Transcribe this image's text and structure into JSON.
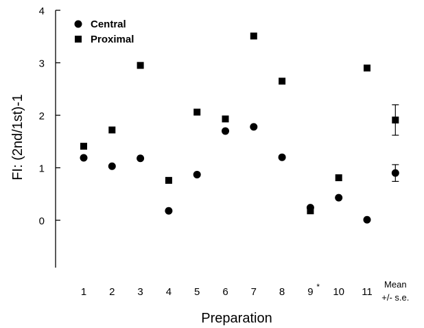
{
  "chart_data": {
    "type": "scatter",
    "xlabel": "Preparation",
    "ylabel": "FI:  (2nd/1st)-1",
    "ylim": [
      -0.9,
      4
    ],
    "yticks": [
      0,
      1,
      2,
      3,
      4
    ],
    "grid": false,
    "legend_position": "top-left",
    "categories": [
      {
        "label": "1",
        "suffix": ""
      },
      {
        "label": "2",
        "suffix": ""
      },
      {
        "label": "3",
        "suffix": ""
      },
      {
        "label": "4",
        "suffix": ""
      },
      {
        "label": "5",
        "suffix": ""
      },
      {
        "label": "6",
        "suffix": ""
      },
      {
        "label": "7",
        "suffix": ""
      },
      {
        "label": "8",
        "suffix": ""
      },
      {
        "label": "9",
        "suffix": "*"
      },
      {
        "label": "10",
        "suffix": ""
      },
      {
        "label": "11",
        "suffix": ""
      },
      {
        "label": "Mean",
        "label2": "+/- s.e.",
        "suffix": ""
      }
    ],
    "series": [
      {
        "name": "Central",
        "marker": "circle",
        "color": "#000000",
        "values": [
          1.19,
          1.03,
          1.18,
          0.18,
          0.87,
          1.7,
          1.78,
          1.2,
          0.24,
          0.43,
          0.01,
          0.9
        ],
        "errors": [
          null,
          null,
          null,
          null,
          null,
          null,
          null,
          null,
          null,
          null,
          null,
          0.16
        ]
      },
      {
        "name": "Proximal",
        "marker": "square",
        "color": "#000000",
        "values": [
          1.41,
          1.72,
          2.95,
          0.76,
          2.06,
          1.93,
          3.51,
          2.65,
          0.18,
          0.81,
          2.9,
          1.91
        ],
        "errors": [
          null,
          null,
          null,
          null,
          null,
          null,
          null,
          null,
          null,
          null,
          null,
          0.29
        ]
      }
    ]
  }
}
